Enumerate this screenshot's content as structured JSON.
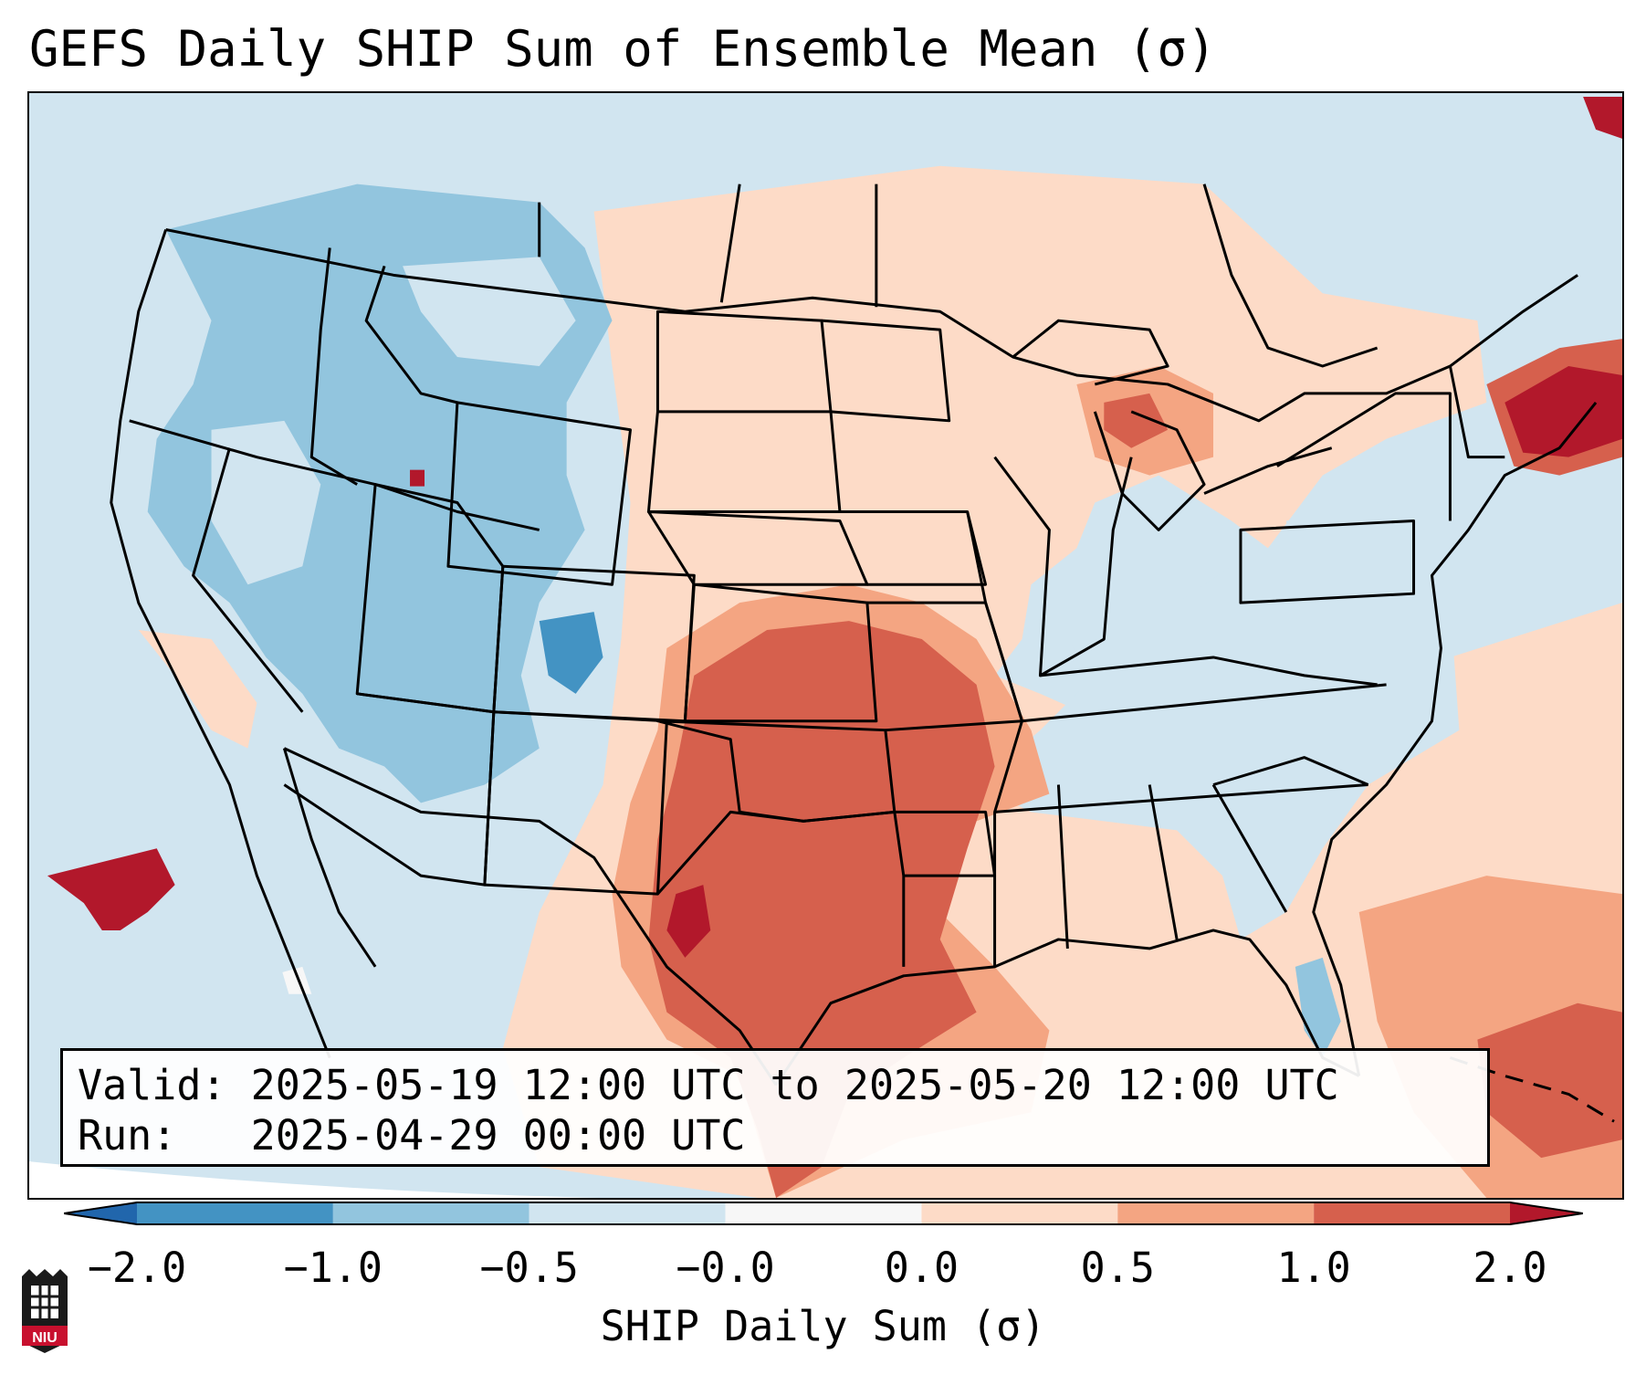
{
  "title": "GEFS Daily SHIP Sum of Ensemble Mean (σ)",
  "info_box": {
    "valid_label": "Valid:",
    "valid_value": "2025-05-19 12:00 UTC to 2025-05-20 12:00 UTC",
    "run_label": "Run:",
    "run_value": "2025-04-29 00:00 UTC"
  },
  "colorbar": {
    "label": "SHIP Daily Sum (σ)",
    "tick_labels": [
      "−2.0",
      "−1.0",
      "−0.5",
      "−0.0",
      "0.0",
      "0.5",
      "1.0",
      "2.0"
    ],
    "bins": [
      {
        "range": "< -2.0",
        "color": "#2166ac"
      },
      {
        "range": "-2.0 to -1.0",
        "color": "#4393c3"
      },
      {
        "range": "-1.0 to -0.5",
        "color": "#92c5de"
      },
      {
        "range": "-0.5 to -0.0",
        "color": "#d1e5f0"
      },
      {
        "range": "-0.0 to 0.0",
        "color": "#f7f7f7"
      },
      {
        "range": "0.0 to 0.5",
        "color": "#fddbc7"
      },
      {
        "range": "0.5 to 1.0",
        "color": "#f4a582"
      },
      {
        "range": "1.0 to 2.0",
        "color": "#d6604d"
      },
      {
        "range": "> 2.0",
        "color": "#b2182b"
      }
    ]
  },
  "map": {
    "region": "Contiguous United States",
    "anomaly_regions": [
      {
        "area": "Pacific Northwest / Great Basin / Rockies",
        "category": "-1.0 to -0.5"
      },
      {
        "area": "Southern Plains (Oklahoma, Kansas, Texas)",
        "category": "1.0 to 2.0"
      },
      {
        "area": "West Texas",
        "category": "> 2.0"
      },
      {
        "area": "Northern Utah",
        "category": "> 2.0"
      },
      {
        "area": "Eastern Pacific off Baja",
        "category": "> 2.0"
      },
      {
        "area": "New England",
        "category": "> 2.0"
      },
      {
        "area": "Gulf of Mexico / Western Atlantic",
        "category": "0.5 to 1.0"
      }
    ]
  },
  "logo": {
    "text": "NIU"
  }
}
